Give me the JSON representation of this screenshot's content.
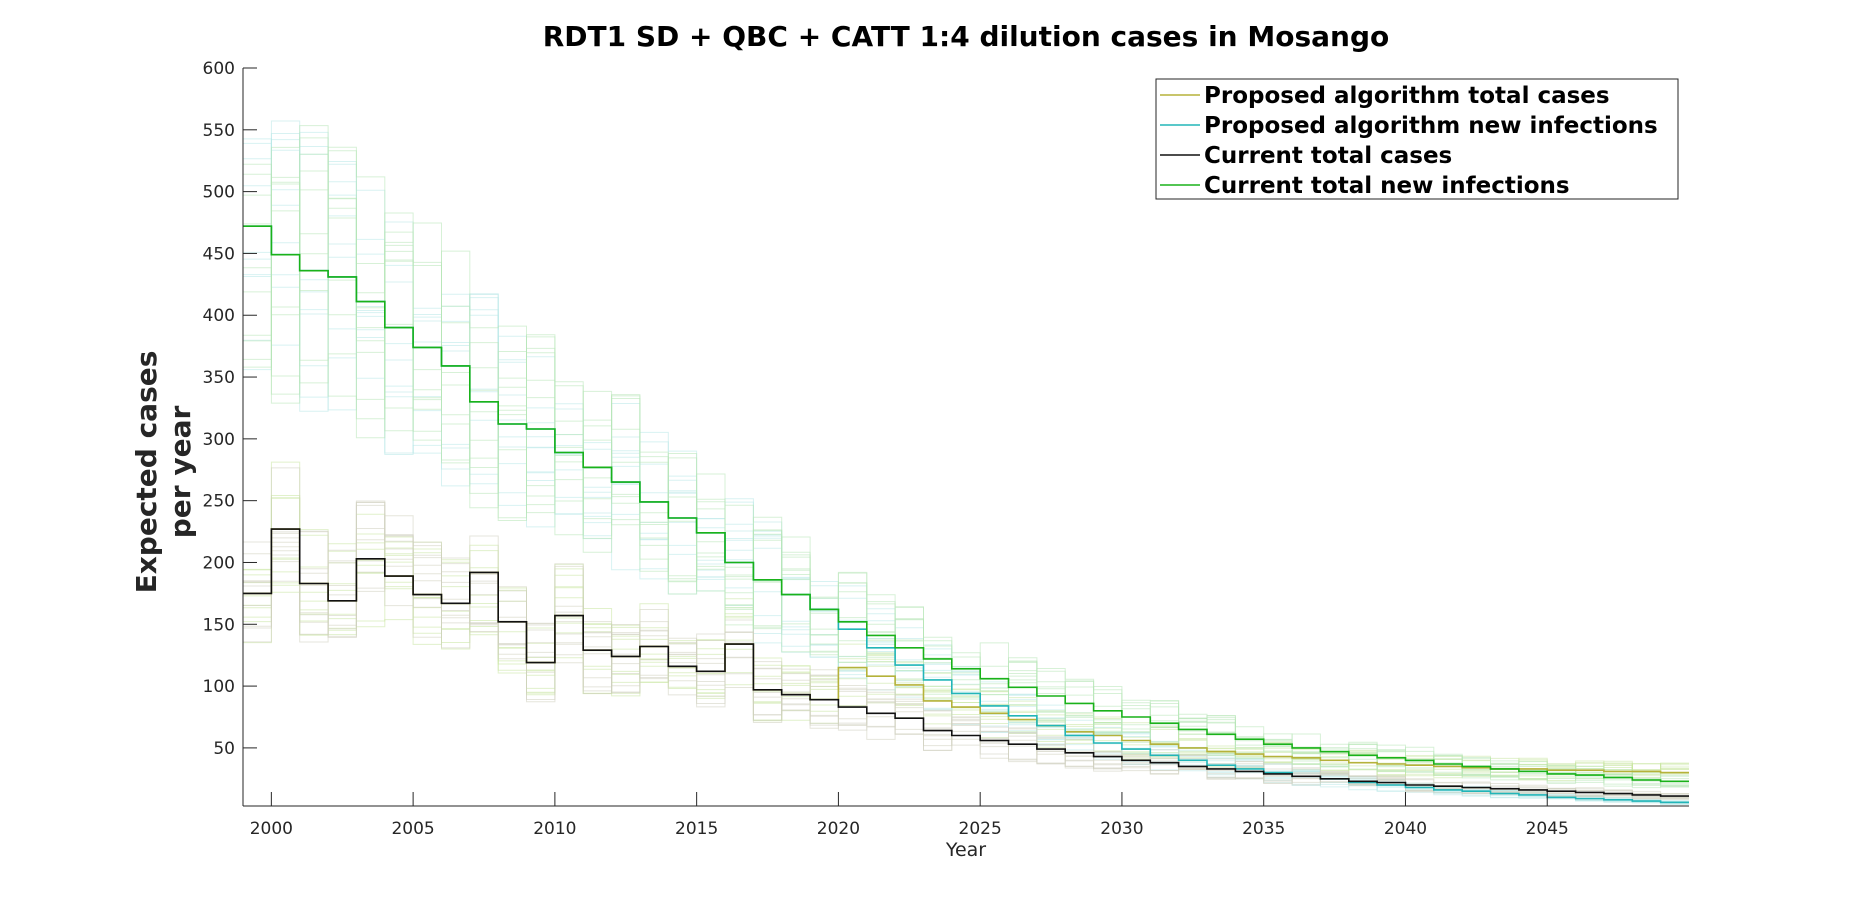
{
  "chart_data": {
    "type": "line",
    "step": true,
    "title": "RDT1 SD + QBC + CATT 1:4 dilution cases in Mosango",
    "xlabel": "Year",
    "ylabel_lines": [
      "Expected cases",
      "per year"
    ],
    "xlim": [
      1999,
      2050
    ],
    "ylim": [
      3,
      600
    ],
    "xticks": [
      2000,
      2005,
      2010,
      2015,
      2020,
      2025,
      2030,
      2035,
      2040,
      2045
    ],
    "yticks": [
      50,
      100,
      150,
      200,
      250,
      300,
      350,
      400,
      450,
      500,
      550,
      600
    ],
    "grid": false,
    "legend_position": "top-right",
    "x": [
      1999,
      2000,
      2001,
      2002,
      2003,
      2004,
      2005,
      2006,
      2007,
      2008,
      2009,
      2010,
      2011,
      2012,
      2013,
      2014,
      2015,
      2016,
      2017,
      2018,
      2019,
      2020,
      2021,
      2022,
      2023,
      2024,
      2025,
      2026,
      2027,
      2028,
      2029,
      2030,
      2031,
      2032,
      2033,
      2034,
      2035,
      2036,
      2037,
      2038,
      2039,
      2040,
      2041,
      2042,
      2043,
      2044,
      2045,
      2046,
      2047,
      2048,
      2049
    ],
    "series": [
      {
        "name": "Proposed algorithm total cases",
        "color": "#b5b23a",
        "values": [
          175,
          227,
          183,
          169,
          203,
          189,
          174,
          167,
          192,
          152,
          119,
          157,
          129,
          124,
          132,
          116,
          112,
          134,
          97,
          93,
          89,
          115,
          108,
          101,
          88,
          83,
          78,
          73,
          68,
          63,
          60,
          56,
          53,
          50,
          47,
          45,
          43,
          42,
          40,
          38,
          37,
          36,
          35,
          34,
          33,
          33,
          32,
          32,
          31,
          31,
          30
        ]
      },
      {
        "name": "Proposed algorithm new infections",
        "color": "#22b5b8",
        "values": [
          472,
          449,
          436,
          431,
          411,
          390,
          374,
          359,
          330,
          312,
          308,
          289,
          277,
          265,
          249,
          236,
          224,
          200,
          186,
          174,
          162,
          146,
          131,
          117,
          105,
          94,
          84,
          76,
          68,
          60,
          54,
          49,
          44,
          40,
          36,
          33,
          30,
          27,
          25,
          22,
          20,
          18,
          16,
          15,
          13,
          12,
          10,
          9,
          8,
          7,
          6
        ]
      },
      {
        "name": "Current total cases",
        "color": "#111111",
        "values": [
          175,
          227,
          183,
          169,
          203,
          189,
          174,
          167,
          192,
          152,
          119,
          157,
          129,
          124,
          132,
          116,
          112,
          134,
          97,
          93,
          89,
          83,
          78,
          74,
          64,
          60,
          56,
          53,
          49,
          46,
          43,
          40,
          38,
          35,
          33,
          31,
          29,
          27,
          25,
          23,
          22,
          20,
          19,
          18,
          17,
          16,
          15,
          14,
          13,
          12,
          11
        ]
      },
      {
        "name": "Current total new infections",
        "color": "#1ab21a",
        "values": [
          472,
          449,
          436,
          431,
          411,
          390,
          374,
          359,
          330,
          312,
          308,
          289,
          277,
          265,
          249,
          236,
          224,
          200,
          186,
          174,
          162,
          152,
          141,
          131,
          122,
          114,
          106,
          99,
          92,
          86,
          80,
          75,
          70,
          65,
          61,
          57,
          53,
          50,
          47,
          44,
          42,
          40,
          37,
          35,
          33,
          31,
          29,
          28,
          26,
          24,
          23
        ]
      }
    ]
  }
}
